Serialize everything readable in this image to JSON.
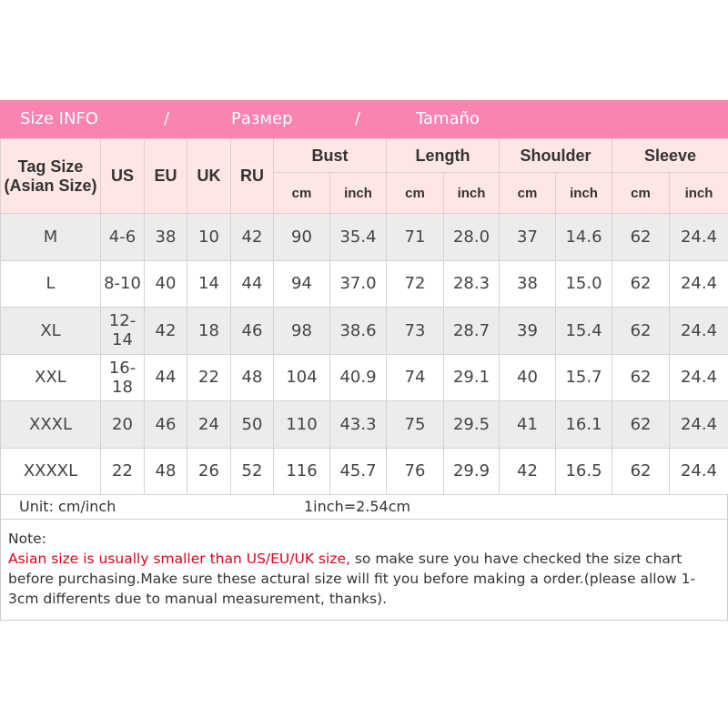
{
  "title": {
    "parts": [
      "Size INFO",
      "/",
      "Размер",
      "/",
      "Tamaño"
    ]
  },
  "colors": {
    "title_bar": "#f984b0",
    "header_bg": "#fde6e4",
    "row_alt": "#ececec",
    "warning": "#e0001b"
  },
  "headers": {
    "tag_size": "Tag Size",
    "tag_size_sub": "(Asian Size)",
    "us": "US",
    "eu": "EU",
    "uk": "UK",
    "ru": "RU",
    "groups": [
      "Bust",
      "Length",
      "Shoulder",
      "Sleeve"
    ],
    "units": [
      "cm",
      "inch",
      "cm",
      "inch",
      "cm",
      "inch",
      "cm",
      "inch"
    ]
  },
  "rows": [
    [
      "M",
      "4-6",
      "38",
      "10",
      "42",
      "90",
      "35.4",
      "71",
      "28.0",
      "37",
      "14.6",
      "62",
      "24.4"
    ],
    [
      "L",
      "8-10",
      "40",
      "14",
      "44",
      "94",
      "37.0",
      "72",
      "28.3",
      "38",
      "15.0",
      "62",
      "24.4"
    ],
    [
      "XL",
      "12-14",
      "42",
      "18",
      "46",
      "98",
      "38.6",
      "73",
      "28.7",
      "39",
      "15.4",
      "62",
      "24.4"
    ],
    [
      "XXL",
      "16-18",
      "44",
      "22",
      "48",
      "104",
      "40.9",
      "74",
      "29.1",
      "40",
      "15.7",
      "62",
      "24.4"
    ],
    [
      "XXXL",
      "20",
      "46",
      "24",
      "50",
      "110",
      "43.3",
      "75",
      "29.5",
      "41",
      "16.1",
      "62",
      "24.4"
    ],
    [
      "XXXXL",
      "22",
      "48",
      "26",
      "52",
      "116",
      "45.7",
      "76",
      "29.9",
      "42",
      "16.5",
      "62",
      "24.4"
    ]
  ],
  "unit_row": {
    "unit": "Unit: cm/inch",
    "conversion": "1inch=2.54cm"
  },
  "note": {
    "label": "Note:",
    "warning": "Asian size is usually smaller than US/EU/UK size,",
    "text": " so make sure you have checked the size chart before purchasing.Make sure these actural size will fit you before making a order.(please allow 1-3cm differents due to manual measurement, thanks)."
  }
}
